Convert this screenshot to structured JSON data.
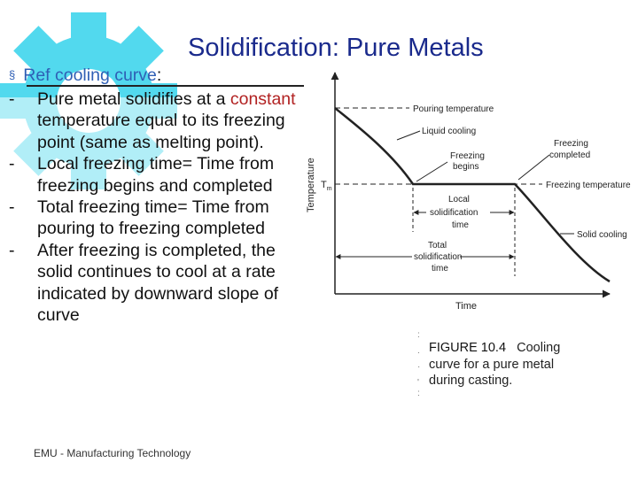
{
  "slide": {
    "title": "Solidification: Pure Metals",
    "ref": {
      "bullet": "§",
      "link_text": "Ref cooling curve",
      "colon": ":"
    },
    "bullets": [
      {
        "dash": "-",
        "before": "Pure metal solidifies at a ",
        "highlight": "constant",
        "after": " temperature equal to its freezing point (same as melting point)."
      },
      {
        "dash": "-",
        "before": "Local freezing time= Time from freezing begins and completed",
        "highlight": "",
        "after": ""
      },
      {
        "dash": "-",
        "before": "Total freezing time= Time from pouring to freezing completed",
        "highlight": "",
        "after": ""
      },
      {
        "dash": "-",
        "before": "After freezing is completed, the solid continues to cool at a rate indicated by downward slope of curve",
        "highlight": "",
        "after": ""
      }
    ],
    "footer": "EMU - Manufacturing Technology"
  },
  "diagram": {
    "y_axis_label": "Temperature",
    "x_axis_label": "Time",
    "tm_symbol": "T",
    "tm_subscript": "m",
    "labels": {
      "pouring_temperature": "Pouring temperature",
      "liquid_cooling": "Liquid cooling",
      "freezing_begins_1": "Freezing",
      "freezing_begins_2": "begins",
      "freezing_completed_1": "Freezing",
      "freezing_completed_2": "completed",
      "freezing_temperature": "Freezing temperature",
      "local_1": "Local",
      "local_2": "solidification",
      "local_3": "time",
      "total_1": "Total",
      "total_2": "solidification",
      "total_3": "time",
      "solid_cooling": "Solid cooling"
    }
  },
  "caption": {
    "line1_fig": "FIGURE 10.4",
    "line1_rest": "Cooling",
    "line2": "curve for a pure metal",
    "line3": "during casting."
  },
  "colors": {
    "title": "#1a2a8c",
    "bullet_blue": "#2f5fb5",
    "highlight_red": "#b22222",
    "gear_cyan": "#35d3ec"
  }
}
